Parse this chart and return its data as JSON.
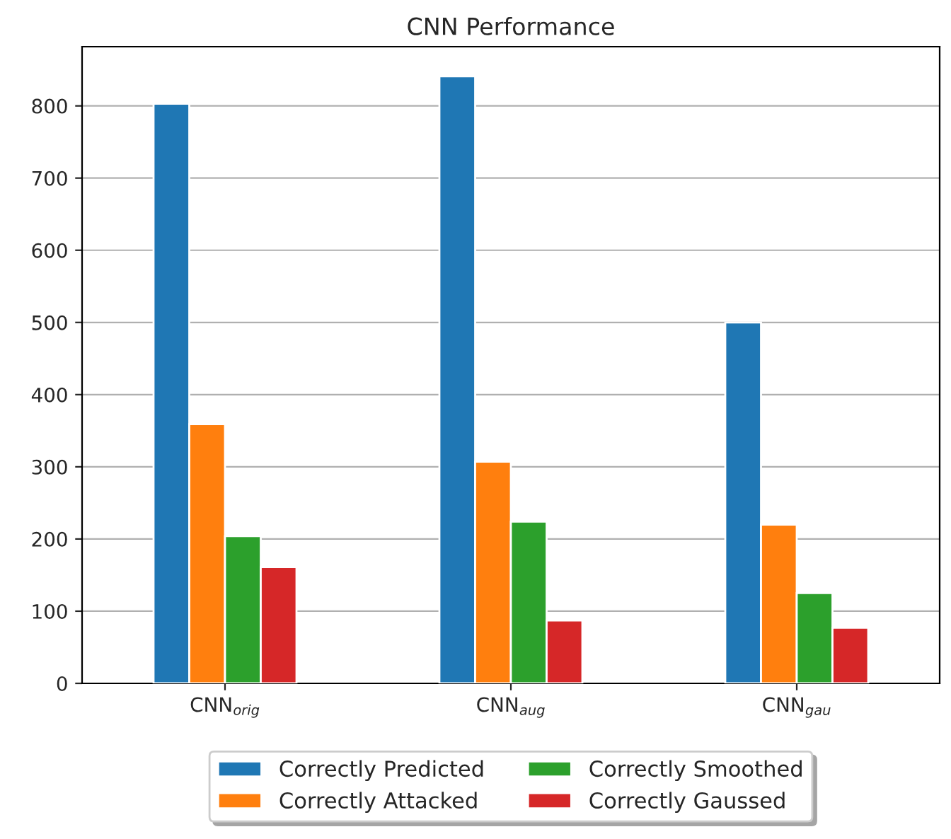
{
  "chart_data": {
    "type": "bar",
    "title": "CNN Performance",
    "categories": [
      "CNN$_{orig}$",
      "CNN$_{aug}$",
      "CNN$_{gau}$"
    ],
    "series": [
      {
        "name": "Correctly Predicted",
        "color": "#1f77b4",
        "values": [
          803,
          841,
          500
        ]
      },
      {
        "name": "Correctly Attacked",
        "color": "#ff7f0e",
        "values": [
          359,
          307,
          220
        ]
      },
      {
        "name": "Correctly Smoothed",
        "color": "#2ca02c",
        "values": [
          204,
          224,
          125
        ]
      },
      {
        "name": "Correctly Gaussed",
        "color": "#d62728",
        "values": [
          161,
          87,
          77
        ]
      }
    ],
    "ylim": [
      0,
      882
    ],
    "yticks": [
      0,
      100,
      200,
      300,
      400,
      500,
      600,
      700,
      800
    ],
    "grid": "y",
    "legend": "bottom"
  }
}
